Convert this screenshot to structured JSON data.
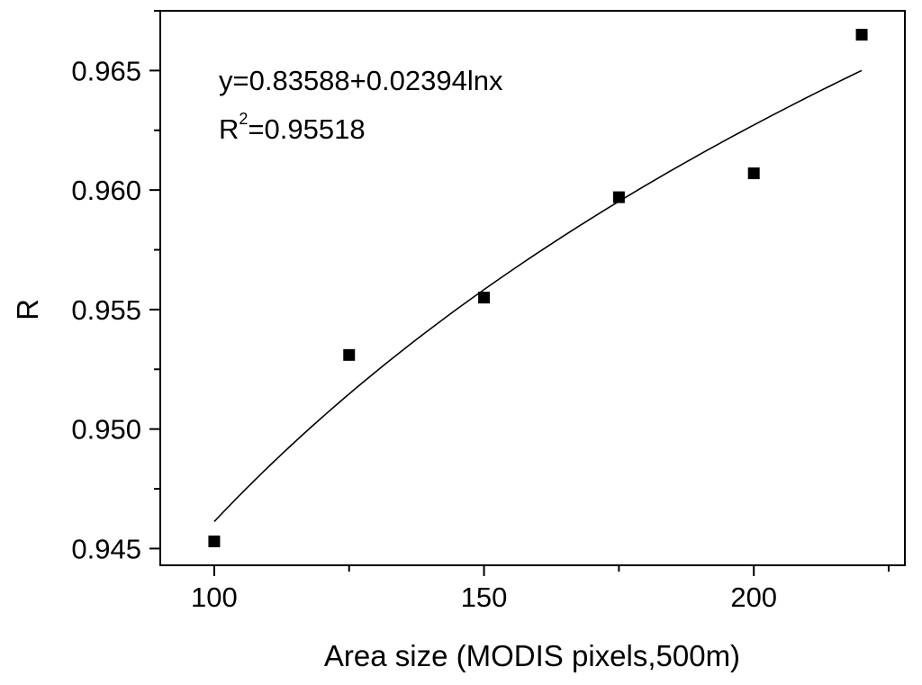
{
  "chart_data": {
    "type": "scatter",
    "xlabel": "Area size (MODIS pixels,500m)",
    "ylabel": "R",
    "xlim": [
      90,
      228
    ],
    "ylim": [
      0.9443,
      0.9675
    ],
    "x_ticks": [
      100,
      150,
      200
    ],
    "x_tick_labels": [
      "100",
      "150",
      "200"
    ],
    "y_ticks": [
      0.945,
      0.95,
      0.955,
      0.96,
      0.965
    ],
    "y_tick_labels": [
      "0.945",
      "0.950",
      "0.955",
      "0.960",
      "0.965"
    ],
    "x_minor_step": 25,
    "y_minor_step": 0.0025,
    "grid": false,
    "legend": "none",
    "points": {
      "marker": "square",
      "x": [
        100,
        125,
        150,
        175,
        200,
        220
      ],
      "y": [
        0.9453,
        0.9531,
        0.9555,
        0.9597,
        0.9607,
        0.9665
      ]
    },
    "fit": {
      "model": "logarithmic",
      "a": 0.83588,
      "b": 0.02394,
      "x_range": [
        100,
        220
      ]
    },
    "annotations": {
      "equation": "y=0.83588+0.02394lnx",
      "r2_base": "R",
      "r2_sup": "2",
      "r2_value": "=0.95518"
    },
    "colors": {
      "marker": "#000000",
      "line": "#000000",
      "axes": "#000000",
      "background": "#ffffff"
    }
  }
}
